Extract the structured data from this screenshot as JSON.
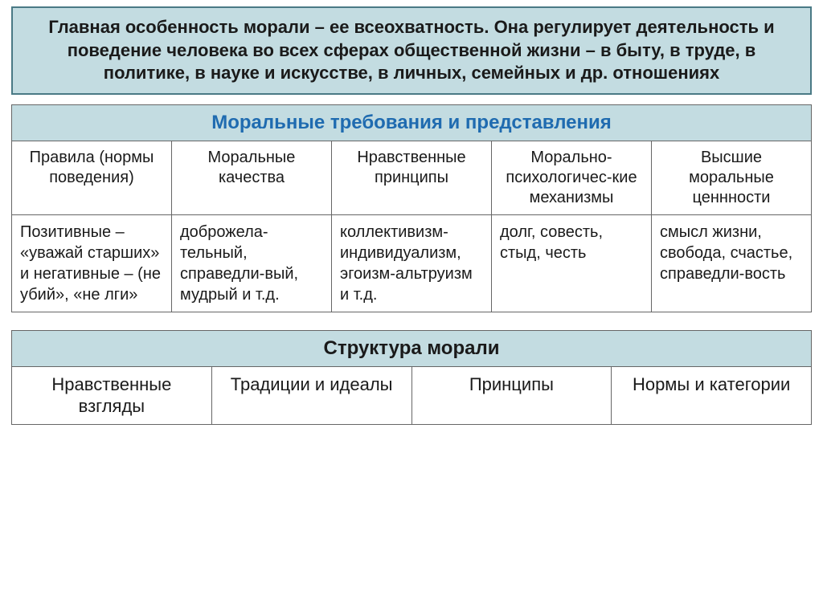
{
  "intro": {
    "text": "Главная особенность морали – ее всеохватность. Она регулирует деятельность и поведение человека во всех сферах общественной жизни – в быту, в труде, в политике, в науке и искусстве, в личных, семейных и др. отношениях",
    "bg_color": "#c3dce1",
    "border_color": "#4a7a85",
    "fontsize": 22
  },
  "main_table": {
    "title": "Моральные требования и представления",
    "title_color": "#1f6bb0",
    "title_bg": "#c3dce1",
    "headers": [
      "Правила (нормы поведения)",
      "Моральные качества",
      "Нравственные принципы",
      "Морально-психологичес-кие механизмы",
      "Высшие моральные ценнности"
    ],
    "cells": [
      "Позитивные – «уважай старших» и негативные – (не убий», «не лги»",
      "доброжела-тельный, справедли-вый, мудрый и т.д.",
      "коллективизм-индивидуализм, эгоизм-альтруизм и т.д.",
      "долг, совесть, стыд, честь",
      "смысл жизни, свобода, счастье, справедли-вость"
    ]
  },
  "struct_table": {
    "title": "Структура морали",
    "title_bg": "#c3dce1",
    "cells": [
      "Нравственные взгляды",
      "Традиции и идеалы",
      "Принципы",
      "Нормы и категории"
    ]
  },
  "style": {
    "border_color": "#666666",
    "body_font": "Arial",
    "cell_fontsize": 20
  }
}
